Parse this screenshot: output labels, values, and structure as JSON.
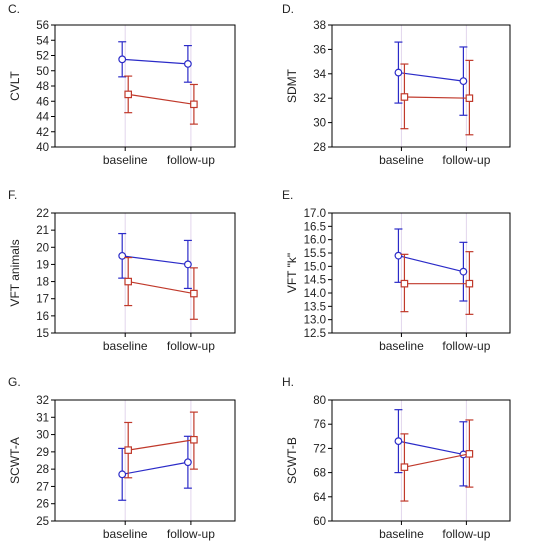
{
  "colors": {
    "series_blue": "#2b2bc8",
    "series_red": "#c0392b",
    "grid": "#e2d6ec"
  },
  "chart_data": [
    {
      "panel": "C.",
      "type": "line",
      "ylabel": "CVLT",
      "ylim": [
        40,
        56
      ],
      "yticks": [
        "40",
        "42",
        "44",
        "46",
        "48",
        "50",
        "52",
        "54",
        "56"
      ],
      "categories": [
        "baseline",
        "follow-up"
      ],
      "series": [
        {
          "marker": "circle",
          "values": [
            51.5,
            50.9
          ],
          "err_low": [
            49.2,
            48.5
          ],
          "err_high": [
            53.8,
            53.3
          ]
        },
        {
          "marker": "square",
          "values": [
            46.9,
            45.6
          ],
          "err_low": [
            44.5,
            43.0
          ],
          "err_high": [
            49.3,
            48.2
          ]
        }
      ]
    },
    {
      "panel": "D.",
      "type": "line",
      "ylabel": "SDMT",
      "ylim": [
        28,
        38
      ],
      "yticks": [
        "28",
        "30",
        "32",
        "34",
        "36",
        "38"
      ],
      "categories": [
        "baseline",
        "follow-up"
      ],
      "series": [
        {
          "marker": "circle",
          "values": [
            34.1,
            33.4
          ],
          "err_low": [
            31.6,
            30.6
          ],
          "err_high": [
            36.6,
            36.2
          ]
        },
        {
          "marker": "square",
          "values": [
            32.1,
            32.0
          ],
          "err_low": [
            29.5,
            29.0
          ],
          "err_high": [
            34.8,
            35.1
          ]
        }
      ]
    },
    {
      "panel": "F.",
      "type": "line",
      "ylabel": "VFT animals",
      "ylim": [
        15,
        22
      ],
      "yticks": [
        "15",
        "16",
        "17",
        "18",
        "19",
        "20",
        "21",
        "22"
      ],
      "categories": [
        "baseline",
        "follow-up"
      ],
      "series": [
        {
          "marker": "circle",
          "values": [
            19.5,
            19.0
          ],
          "err_low": [
            18.2,
            17.6
          ],
          "err_high": [
            20.8,
            20.4
          ]
        },
        {
          "marker": "square",
          "values": [
            18.0,
            17.3
          ],
          "err_low": [
            16.6,
            15.8
          ],
          "err_high": [
            19.4,
            18.8
          ]
        }
      ]
    },
    {
      "panel": "E.",
      "type": "line",
      "ylabel": "VFT \"k\"",
      "ylim": [
        12.5,
        17.0
      ],
      "yticks": [
        "12.5",
        "13.0",
        "13.5",
        "14.0",
        "14.5",
        "15.0",
        "15.5",
        "16.0",
        "16.5",
        "17.0"
      ],
      "categories": [
        "baseline",
        "follow-up"
      ],
      "series": [
        {
          "marker": "circle",
          "values": [
            15.4,
            14.8
          ],
          "err_low": [
            14.4,
            13.7
          ],
          "err_high": [
            16.4,
            15.9
          ]
        },
        {
          "marker": "square",
          "values": [
            14.35,
            14.35
          ],
          "err_low": [
            13.3,
            13.2
          ],
          "err_high": [
            15.45,
            15.55
          ]
        }
      ]
    },
    {
      "panel": "G.",
      "type": "line",
      "ylabel": "SCWT-A",
      "ylim": [
        25,
        32
      ],
      "yticks": [
        "25",
        "26",
        "27",
        "28",
        "29",
        "30",
        "31",
        "32"
      ],
      "categories": [
        "baseline",
        "follow-up"
      ],
      "series": [
        {
          "marker": "circle",
          "values": [
            27.7,
            28.4
          ],
          "err_low": [
            26.2,
            26.9
          ],
          "err_high": [
            29.2,
            29.9
          ]
        },
        {
          "marker": "square",
          "values": [
            29.1,
            29.7
          ],
          "err_low": [
            27.5,
            28.0
          ],
          "err_high": [
            30.7,
            31.3
          ]
        }
      ]
    },
    {
      "panel": "H.",
      "type": "line",
      "ylabel": "SCWT-B",
      "ylim": [
        60,
        80
      ],
      "yticks": [
        "60",
        "64",
        "68",
        "72",
        "76",
        "80"
      ],
      "categories": [
        "baseline",
        "follow-up"
      ],
      "series": [
        {
          "marker": "circle",
          "values": [
            73.2,
            71.0
          ],
          "err_low": [
            68.0,
            65.8
          ],
          "err_high": [
            78.4,
            76.4
          ]
        },
        {
          "marker": "square",
          "values": [
            68.9,
            71.1
          ],
          "err_low": [
            63.3,
            65.6
          ],
          "err_high": [
            74.4,
            76.7
          ]
        }
      ]
    }
  ]
}
